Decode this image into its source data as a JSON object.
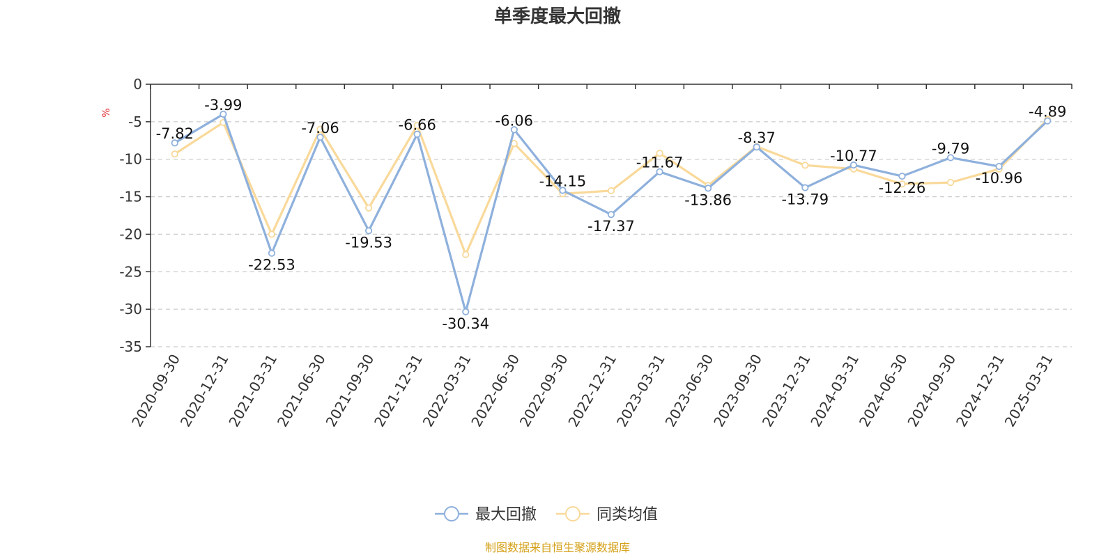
{
  "chart_data": {
    "type": "line",
    "title": "单季度最大回撤",
    "ylabel": "%",
    "ylim": [
      -35,
      0
    ],
    "yticks": [
      0,
      -5,
      -10,
      -15,
      -20,
      -25,
      -30,
      -35
    ],
    "grid": true,
    "legend_position": "bottom",
    "categories": [
      "2020-09-30",
      "2020-12-31",
      "2021-03-31",
      "2021-06-30",
      "2021-09-30",
      "2021-12-31",
      "2022-03-31",
      "2022-06-30",
      "2022-09-30",
      "2022-12-31",
      "2023-03-31",
      "2023-06-30",
      "2023-09-30",
      "2023-12-31",
      "2024-03-31",
      "2024-06-30",
      "2024-09-30",
      "2024-12-31",
      "2025-03-31"
    ],
    "series": [
      {
        "name": "最大回撤",
        "color": "#8eb0dc",
        "values": [
          -7.82,
          -3.99,
          -22.53,
          -7.06,
          -19.53,
          -6.66,
          -30.34,
          -6.06,
          -14.15,
          -17.37,
          -11.67,
          -13.86,
          -8.37,
          -13.79,
          -10.77,
          -12.26,
          -9.79,
          -10.96,
          -4.89
        ],
        "labels": [
          "-7.82",
          "-3.99",
          "-22.53",
          "-7.06",
          "-19.53",
          "-6.66",
          "-30.34",
          "-6.06",
          "-14.15",
          "-17.37",
          "-11.67",
          "-13.86",
          "-8.37",
          "-13.79",
          "-10.77",
          "-12.26",
          "-9.79",
          "-10.96",
          "-4.89"
        ]
      },
      {
        "name": "同类均值",
        "color": "#f9d99a",
        "values": [
          -9.3,
          -5.1,
          -20.0,
          -6.0,
          -16.5,
          -5.5,
          -22.7,
          -7.9,
          -14.6,
          -14.2,
          -9.2,
          -13.5,
          -8.3,
          -10.8,
          -11.3,
          -13.3,
          -13.1,
          -11.3,
          -4.7
        ]
      }
    ],
    "source": "制图数据来自恒生聚源数据库",
    "source_color": "#d4a017",
    "unit_color": "#e03030"
  }
}
